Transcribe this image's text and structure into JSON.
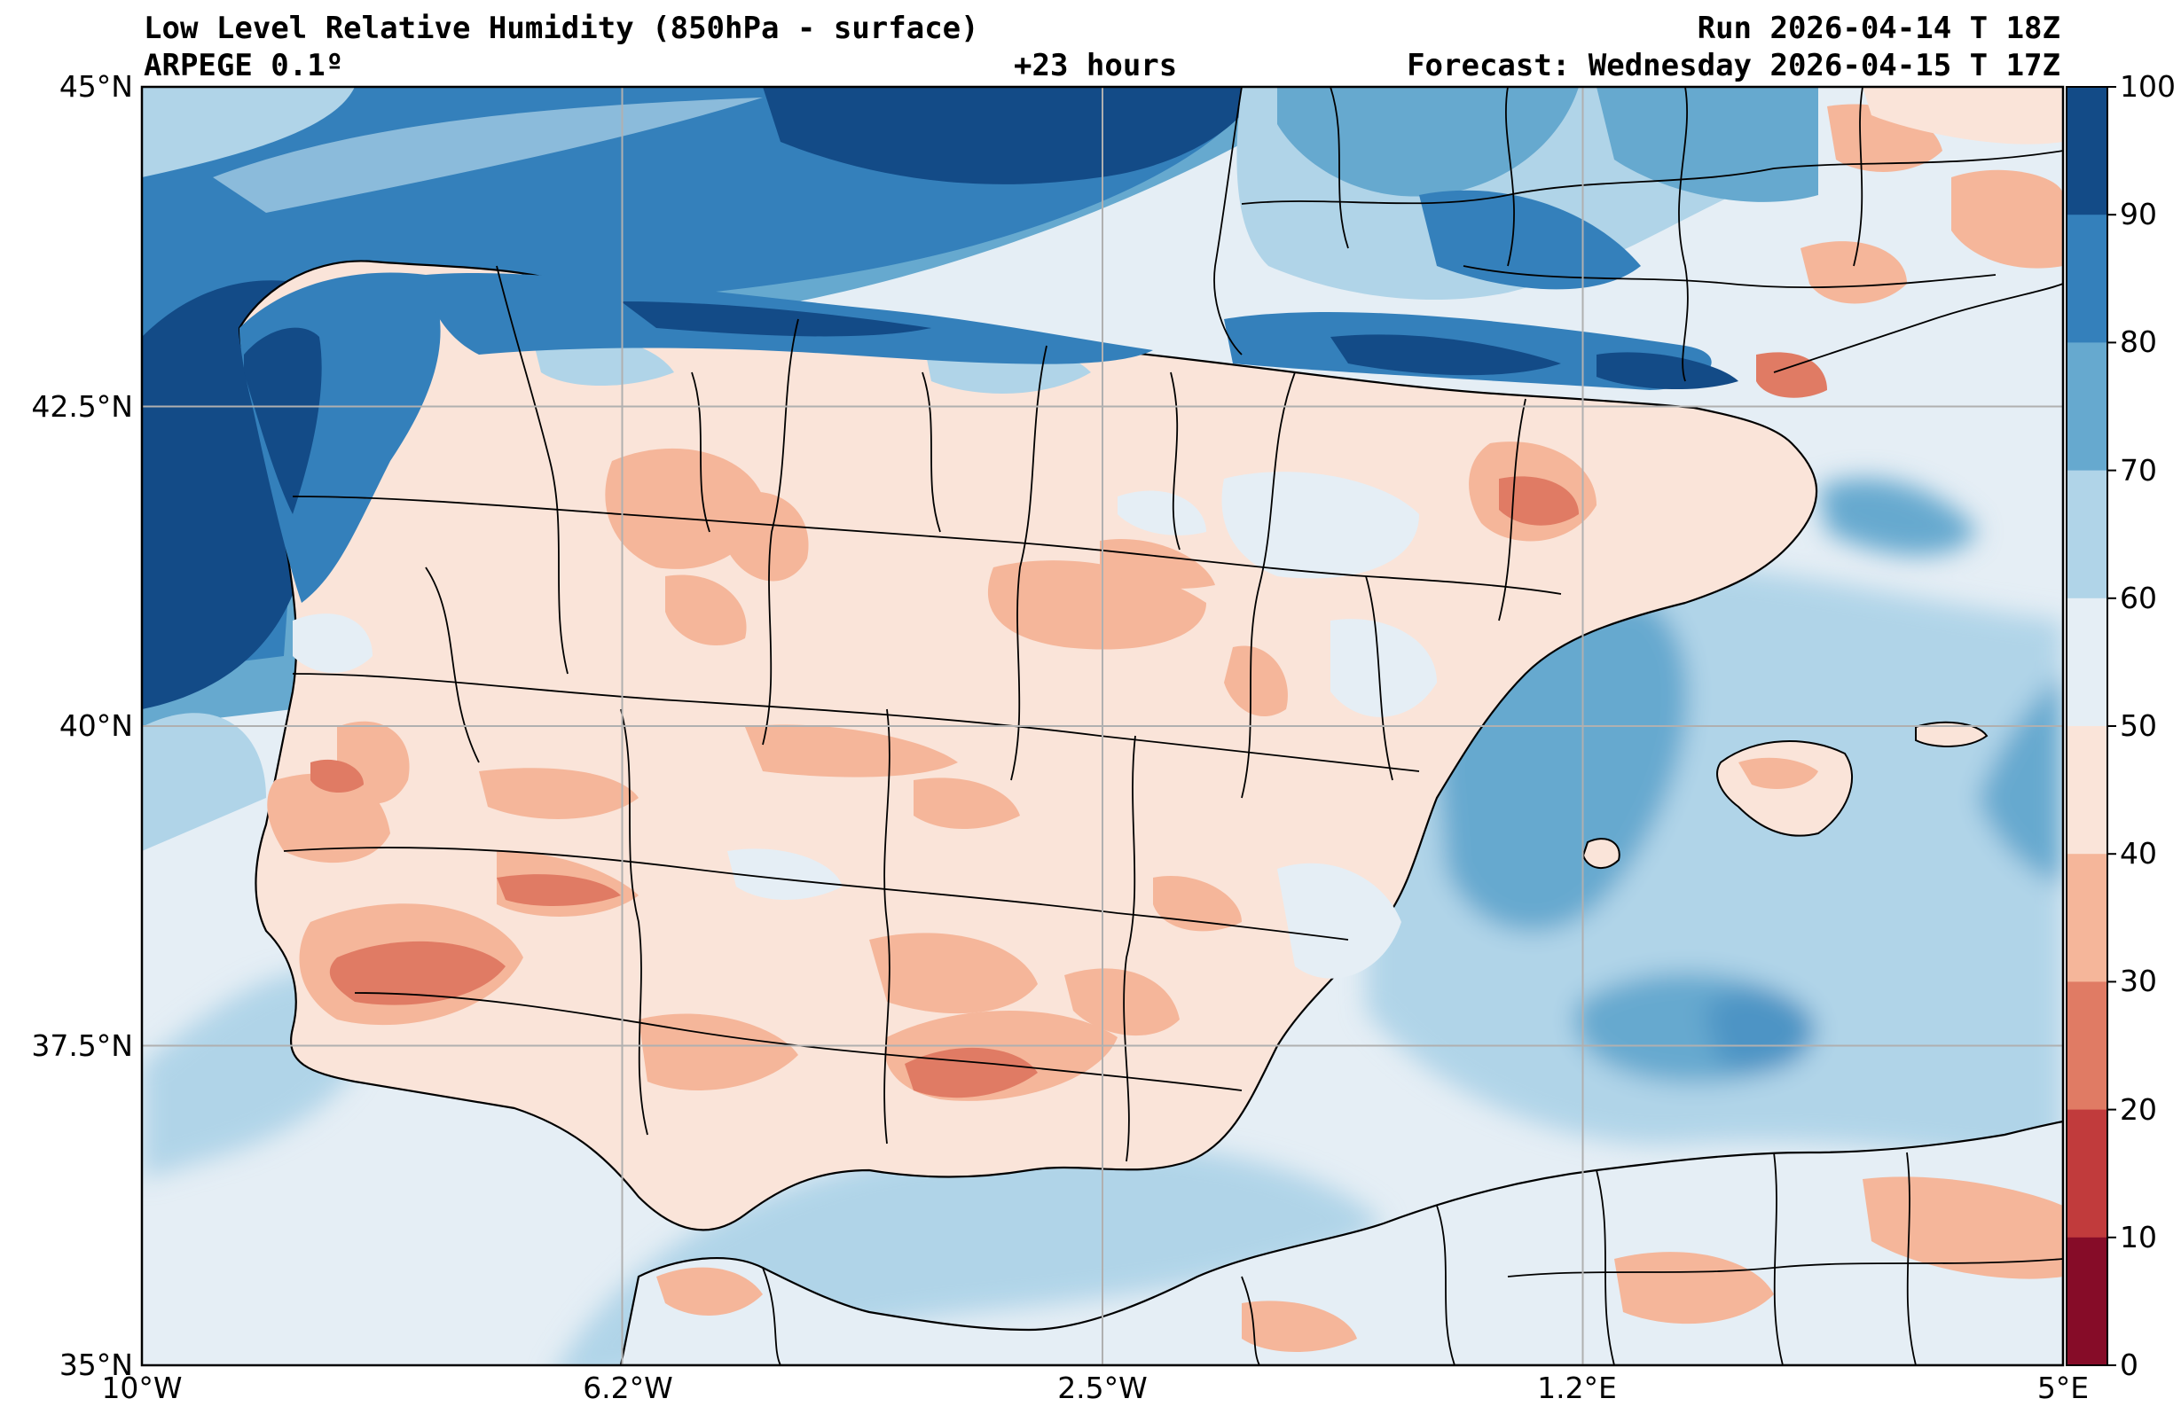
{
  "header": {
    "title": "Low Level Relative Humidity (850hPa - surface)",
    "model": "ARPEGE 0.1º",
    "lead_time": "+23 hours",
    "run": "Run 2026-04-14 T 18Z",
    "forecast": "Forecast: Wednesday 2026-04-15 T 17Z"
  },
  "axes": {
    "lat_ticks": [
      "45°N",
      "42.5°N",
      "40°N",
      "37.5°N",
      "35°N"
    ],
    "lon_ticks": [
      "10°W",
      "6.2°W",
      "2.5°W",
      "1.2°E",
      "5°E"
    ],
    "lat_range": [
      35,
      45
    ],
    "lon_range": [
      -10,
      5
    ],
    "grid": true
  },
  "colorbar": {
    "levels": [
      "100",
      "90",
      "80",
      "70",
      "60",
      "50",
      "40",
      "30",
      "20",
      "10",
      "0"
    ],
    "colors": [
      "#134b87",
      "#3480bb",
      "#66a9cf",
      "#b0d4e8",
      "#e5eef5",
      "#fae4d9",
      "#f5b69a",
      "#e07b64",
      "#c13b3c",
      "#860c28"
    ]
  },
  "palette": {
    "sea_moist": "#b0d4e8",
    "sea_dry": "#e5eef5",
    "land_dry": "#fae4d9",
    "land_drier": "#f5b69a",
    "land_driest": "#e07b64",
    "very_moist": "#134b87",
    "moist": "#3480bb",
    "humid": "#66a9cf"
  }
}
